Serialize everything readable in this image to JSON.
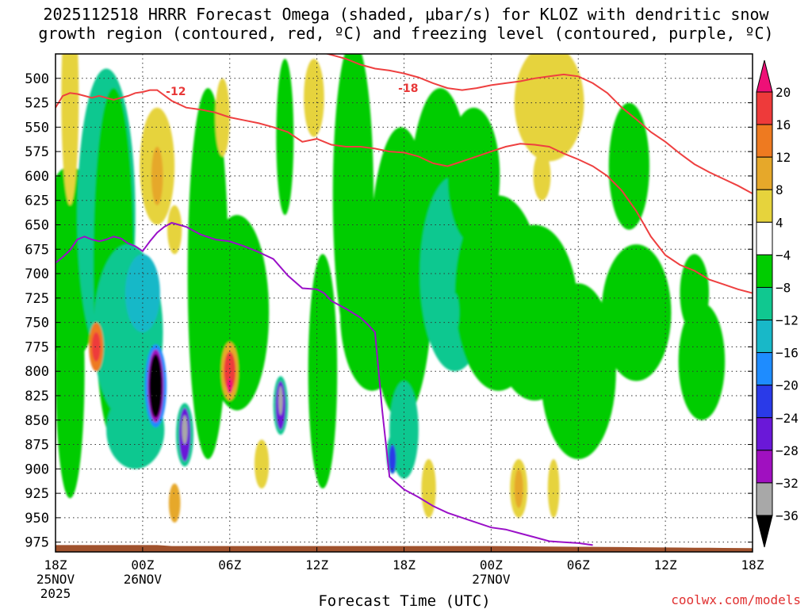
{
  "title_line1": "2025112518 HRRR Forecast Omega (shaded, μbar/s) for KLOZ with dendritic snow",
  "title_line2": "growth region (contoured, red, ºC) and freezing level (contoured, purple, ºC)",
  "credit": "coolwx.com/models",
  "chart_data": {
    "type": "heatmap",
    "title": "2025112518 HRRR Forecast Omega (shaded, μbar/s) for KLOZ with dendritic snow growth region (contoured, red, ºC) and freezing level (contoured, purple, ºC)",
    "xlabel": "Forecast Time (UTC)",
    "ylabel": "",
    "x_ticks": [
      {
        "t": 0,
        "label": "18Z",
        "sub1": "25NOV",
        "sub2": "2025"
      },
      {
        "t": 6,
        "label": "00Z",
        "sub1": "26NOV",
        "sub2": ""
      },
      {
        "t": 12,
        "label": "06Z",
        "sub1": "",
        "sub2": ""
      },
      {
        "t": 18,
        "label": "12Z",
        "sub1": "",
        "sub2": ""
      },
      {
        "t": 24,
        "label": "18Z",
        "sub1": "",
        "sub2": ""
      },
      {
        "t": 30,
        "label": "00Z",
        "sub1": "27NOV",
        "sub2": ""
      },
      {
        "t": 36,
        "label": "06Z",
        "sub1": "",
        "sub2": ""
      },
      {
        "t": 42,
        "label": "12Z",
        "sub1": "",
        "sub2": ""
      },
      {
        "t": 48,
        "label": "18Z",
        "sub1": "",
        "sub2": ""
      }
    ],
    "y_ticks": [
      500,
      525,
      550,
      575,
      600,
      625,
      650,
      675,
      700,
      725,
      750,
      775,
      800,
      825,
      850,
      875,
      900,
      925,
      950,
      975
    ],
    "xlim": [
      0,
      48
    ],
    "ylim": [
      985,
      475
    ],
    "colorbar": {
      "labels": [
        "20",
        "16",
        "12",
        "8",
        "4",
        "−4",
        "−8",
        "−12",
        "−16",
        "−20",
        "−24",
        "−28",
        "−32",
        "−36"
      ],
      "bins": [
        {
          "from": 20,
          "to": 24,
          "color": "#ee1077"
        },
        {
          "from": 16,
          "to": 20,
          "color": "#ee3a3a"
        },
        {
          "from": 12,
          "to": 16,
          "color": "#ee7a20"
        },
        {
          "from": 8,
          "to": 12,
          "color": "#e6a82a"
        },
        {
          "from": 4,
          "to": 8,
          "color": "#e6d33c"
        },
        {
          "from": -4,
          "to": 4,
          "color": "#ffffff"
        },
        {
          "from": -8,
          "to": -4,
          "color": "#00cc00"
        },
        {
          "from": -12,
          "to": -8,
          "color": "#10c890"
        },
        {
          "from": -16,
          "to": -12,
          "color": "#18b8c8"
        },
        {
          "from": -20,
          "to": -16,
          "color": "#1e8cff"
        },
        {
          "from": -24,
          "to": -20,
          "color": "#2a3ae8"
        },
        {
          "from": -28,
          "to": -24,
          "color": "#6a18d8"
        },
        {
          "from": -32,
          "to": -28,
          "color": "#a010c0"
        },
        {
          "from": -36,
          "to": -32,
          "color": "#a8a8a8"
        },
        {
          "from": -40,
          "to": -36,
          "color": "#000000"
        }
      ]
    },
    "omega_features": [
      {
        "t": 1,
        "p": 690,
        "wt": 2.2,
        "wp": 200,
        "v": -5
      },
      {
        "t": 1,
        "p": 800,
        "wt": 1.0,
        "wp": 260,
        "v": -5
      },
      {
        "t": 3.5,
        "p": 640,
        "wt": 2.0,
        "wp": 300,
        "v": -9
      },
      {
        "t": 4.0,
        "p": 690,
        "wt": 1.4,
        "wp": 360,
        "v": -5
      },
      {
        "t": 5.0,
        "p": 760,
        "wt": 2.4,
        "wp": 180,
        "v": -9
      },
      {
        "t": 5.5,
        "p": 860,
        "wt": 2.0,
        "wp": 80,
        "v": -9
      },
      {
        "t": 6.0,
        "p": 720,
        "wt": 1.2,
        "wp": 80,
        "v": -14
      },
      {
        "t": 10.5,
        "p": 700,
        "wt": 1.4,
        "wp": 380,
        "v": -6
      },
      {
        "t": 12.5,
        "p": 740,
        "wt": 2.2,
        "wp": 200,
        "v": -5
      },
      {
        "t": 15.8,
        "p": 560,
        "wt": 0.6,
        "wp": 160,
        "v": -6
      },
      {
        "t": 18.4,
        "p": 800,
        "wt": 1.0,
        "wp": 240,
        "v": -5
      },
      {
        "t": 20.5,
        "p": 620,
        "wt": 1.4,
        "wp": 320,
        "v": -6
      },
      {
        "t": 21.8,
        "p": 740,
        "wt": 2.2,
        "wp": 160,
        "v": -5
      },
      {
        "t": 23.8,
        "p": 700,
        "wt": 2.2,
        "wp": 300,
        "v": -6
      },
      {
        "t": 24.0,
        "p": 860,
        "wt": 1.0,
        "wp": 100,
        "v": -9
      },
      {
        "t": 26.5,
        "p": 640,
        "wt": 2.2,
        "wp": 260,
        "v": -6
      },
      {
        "t": 27.5,
        "p": 700,
        "wt": 2.4,
        "wp": 200,
        "v": -9
      },
      {
        "t": 28.8,
        "p": 600,
        "wt": 1.8,
        "wp": 140,
        "v": -5
      },
      {
        "t": 30.5,
        "p": 720,
        "wt": 3.0,
        "wp": 200,
        "v": -5
      },
      {
        "t": 33.0,
        "p": 740,
        "wt": 3.0,
        "wp": 180,
        "v": -5
      },
      {
        "t": 36.0,
        "p": 800,
        "wt": 2.6,
        "wp": 180,
        "v": -5
      },
      {
        "t": 39.5,
        "p": 590,
        "wt": 1.4,
        "wp": 130,
        "v": -5
      },
      {
        "t": 40.0,
        "p": 740,
        "wt": 2.4,
        "wp": 140,
        "v": -5
      },
      {
        "t": 44.5,
        "p": 790,
        "wt": 1.6,
        "wp": 120,
        "v": -5
      },
      {
        "t": 44.0,
        "p": 720,
        "wt": 1.0,
        "wp": 80,
        "v": -5
      },
      {
        "t": 1,
        "p": 520,
        "wt": 0.6,
        "wp": 220,
        "v": 5
      },
      {
        "t": 2.8,
        "p": 775,
        "wt": 0.5,
        "wp": 50,
        "v": 12
      },
      {
        "t": 2.8,
        "p": 775,
        "wt": 0.3,
        "wp": 30,
        "v": 18
      },
      {
        "t": 7.0,
        "p": 590,
        "wt": 1.2,
        "wp": 120,
        "v": 5
      },
      {
        "t": 7.0,
        "p": 600,
        "wt": 0.4,
        "wp": 60,
        "v": 9
      },
      {
        "t": 8.2,
        "p": 655,
        "wt": 0.5,
        "wp": 50,
        "v": 5
      },
      {
        "t": 8.2,
        "p": 935,
        "wt": 0.4,
        "wp": 40,
        "v": 9
      },
      {
        "t": 11.5,
        "p": 540,
        "wt": 0.5,
        "wp": 80,
        "v": 5
      },
      {
        "t": 12.0,
        "p": 800,
        "wt": 0.6,
        "wp": 60,
        "v": 10
      },
      {
        "t": 12.0,
        "p": 800,
        "wt": 0.4,
        "wp": 40,
        "v": 17
      },
      {
        "t": 12.0,
        "p": 815,
        "wt": 0.2,
        "wp": 15,
        "v": 22
      },
      {
        "t": 14.2,
        "p": 895,
        "wt": 0.5,
        "wp": 50,
        "v": 5
      },
      {
        "t": 17.8,
        "p": 520,
        "wt": 0.7,
        "wp": 80,
        "v": 5
      },
      {
        "t": 25.7,
        "p": 920,
        "wt": 0.5,
        "wp": 60,
        "v": 5
      },
      {
        "t": 34.0,
        "p": 525,
        "wt": 2.4,
        "wp": 120,
        "v": 5
      },
      {
        "t": 33.5,
        "p": 600,
        "wt": 0.6,
        "wp": 50,
        "v": 5
      },
      {
        "t": 31.9,
        "p": 920,
        "wt": 0.6,
        "wp": 60,
        "v": 5
      },
      {
        "t": 31.9,
        "p": 920,
        "wt": 0.3,
        "wp": 40,
        "v": 10
      },
      {
        "t": 34.3,
        "p": 920,
        "wt": 0.4,
        "wp": 60,
        "v": 5
      },
      {
        "t": 6.9,
        "p": 815,
        "wt": 0.75,
        "wp": 85,
        "v": -18
      },
      {
        "t": 6.9,
        "p": 815,
        "wt": 0.55,
        "wp": 75,
        "v": -30
      },
      {
        "t": 6.9,
        "p": 815,
        "wt": 0.45,
        "wp": 65,
        "v": -40
      },
      {
        "t": 8.9,
        "p": 865,
        "wt": 0.6,
        "wp": 65,
        "v": -12
      },
      {
        "t": 8.9,
        "p": 865,
        "wt": 0.4,
        "wp": 55,
        "v": -28
      },
      {
        "t": 8.9,
        "p": 860,
        "wt": 0.2,
        "wp": 30,
        "v": -34
      },
      {
        "t": 15.5,
        "p": 835,
        "wt": 0.5,
        "wp": 60,
        "v": -12
      },
      {
        "t": 15.5,
        "p": 835,
        "wt": 0.35,
        "wp": 50,
        "v": -26
      },
      {
        "t": 15.5,
        "p": 830,
        "wt": 0.15,
        "wp": 30,
        "v": -34
      },
      {
        "t": 23.2,
        "p": 885,
        "wt": 0.4,
        "wp": 40,
        "v": -10
      },
      {
        "t": 23.2,
        "p": 890,
        "wt": 0.25,
        "wp": 30,
        "v": -24
      },
      {
        "t": 27.5,
        "p": 740,
        "wt": 0.3,
        "wp": 40,
        "v": -12
      }
    ],
    "series": [
      {
        "name": "-12",
        "color": "#ee4040",
        "x": [
          0,
          0.5,
          1,
          1.5,
          2,
          2.5,
          3,
          4,
          5,
          5.5,
          6,
          6.5,
          7,
          8,
          9,
          10,
          11,
          12,
          13,
          14,
          15,
          16,
          17,
          18,
          19,
          20,
          21,
          22,
          23,
          24,
          25,
          26
        ],
        "y": [
          530,
          518,
          515,
          516,
          518,
          520,
          518,
          522,
          518,
          515,
          514,
          512,
          512,
          523,
          530,
          532,
          535,
          540,
          543,
          546,
          550,
          555,
          565,
          562,
          568,
          570,
          570,
          572,
          575,
          576,
          580,
          587
        ]
      },
      {
        "name": "-12 (right)",
        "color": "#ee4040",
        "x": [
          26,
          27,
          28,
          29,
          30,
          31,
          32,
          33,
          34,
          35,
          36,
          37,
          38,
          39,
          40,
          41,
          42,
          43,
          44,
          45,
          46,
          47,
          48
        ],
        "y": [
          587,
          590,
          585,
          580,
          575,
          570,
          567,
          568,
          570,
          577,
          583,
          590,
          600,
          615,
          636,
          662,
          681,
          691,
          697,
          706,
          711,
          716,
          720
        ]
      },
      {
        "name": "-18",
        "color": "#ee4040",
        "x": [
          18,
          19,
          20,
          21,
          22,
          23,
          24,
          25,
          26,
          27,
          28,
          29,
          30,
          31,
          32,
          33,
          34,
          35,
          36,
          37,
          38,
          39,
          40,
          41,
          42,
          43,
          44,
          45,
          46,
          47,
          48
        ],
        "y": [
          472,
          476,
          480,
          486,
          490,
          492,
          495,
          499,
          505,
          510,
          512,
          510,
          507,
          505,
          503,
          500,
          498,
          496,
          498,
          505,
          515,
          530,
          542,
          555,
          565,
          577,
          588,
          596,
          603,
          610,
          618
        ]
      },
      {
        "name": "0",
        "color": "#9a10c8",
        "x": [
          0,
          0.5,
          1,
          1.5,
          2,
          2.5,
          3,
          3.5,
          4,
          4.5,
          5,
          5.5,
          6,
          6.5,
          7,
          7.5,
          8,
          8.5,
          9,
          10,
          11,
          12,
          13,
          14,
          15,
          16,
          17,
          18,
          18.5,
          19,
          20,
          21,
          21.5,
          22,
          22.5,
          23,
          24,
          25,
          26,
          27,
          28,
          29,
          30,
          31,
          32,
          33,
          34,
          35,
          36,
          37
        ],
        "y": [
          689,
          683,
          676,
          665,
          662,
          665,
          667,
          665,
          662,
          664,
          669,
          672,
          677,
          667,
          658,
          652,
          648,
          650,
          652,
          660,
          665,
          667,
          672,
          678,
          685,
          702,
          715,
          716,
          720,
          728,
          736,
          745,
          752,
          760,
          840,
          908,
          921,
          929,
          938,
          945,
          950,
          955,
          960,
          962,
          966,
          970,
          974,
          975,
          976,
          978
        ]
      }
    ],
    "terrain": {
      "color": "#a0522d",
      "note": "surface"
    }
  }
}
